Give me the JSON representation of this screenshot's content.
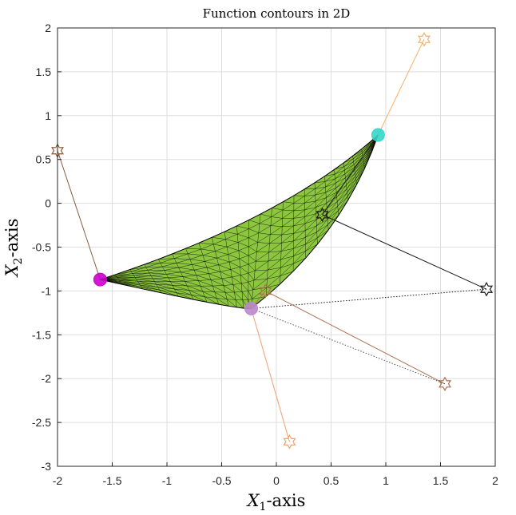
{
  "chart_data": {
    "type": "scatter",
    "title": "Function contours in 2D",
    "xlabel": {
      "var": "X",
      "sub": "1",
      "suffix": "-axis"
    },
    "ylabel": {
      "var": "X",
      "sub": "2",
      "suffix": "-axis"
    },
    "xlim": [
      -2,
      2
    ],
    "ylim": [
      -3,
      2
    ],
    "xticks": [
      -2,
      -1.5,
      -1,
      -0.5,
      0,
      0.5,
      1,
      1.5,
      2
    ],
    "yticks": [
      -3,
      -2.5,
      -2,
      -1.5,
      -1,
      -0.5,
      0,
      0.5,
      1,
      1.5,
      2
    ],
    "xtick_labels": [
      "-2",
      "-1.5",
      "-1",
      "-0.5",
      "0",
      "0.5",
      "1",
      "1.5",
      "2"
    ],
    "ytick_labels": [
      "-3",
      "-2.5",
      "-2",
      "-1.5",
      "-1",
      "-0.5",
      "0",
      "0.5",
      "1",
      "1.5",
      "2"
    ],
    "grid": true,
    "surface": {
      "vertices": [
        [
          -1.61,
          -0.87
        ],
        [
          0.93,
          0.78
        ],
        [
          -0.23,
          -1.2
        ]
      ],
      "fill_color": "#8cc63f",
      "edge_color": "#000000"
    },
    "markers": [
      {
        "x": -1.61,
        "y": -0.87,
        "color": "#cc00cc"
      },
      {
        "x": 0.93,
        "y": 0.78,
        "color": "#33d6c8"
      },
      {
        "x": -0.23,
        "y": -1.2,
        "color": "#bb88cc"
      }
    ],
    "stars": [
      {
        "x": -2.0,
        "y": 0.6,
        "color": "#8b5a3c"
      },
      {
        "x": 1.35,
        "y": 1.87,
        "color": "#f5b06a"
      },
      {
        "x": 1.92,
        "y": -0.98,
        "color": "#1a1a1a"
      },
      {
        "x": 0.42,
        "y": -0.13,
        "color": "#1a1a1a"
      },
      {
        "x": 1.54,
        "y": -2.06,
        "color": "#b07050"
      },
      {
        "x": -0.1,
        "y": -1.0,
        "color": "#b07050"
      },
      {
        "x": 0.12,
        "y": -2.72,
        "color": "#f0a070"
      }
    ],
    "segments": [
      {
        "from": [
          -2.0,
          0.6
        ],
        "to": [
          -1.61,
          -0.87
        ],
        "color": "#8b5a3c",
        "style": "solid"
      },
      {
        "from": [
          1.35,
          1.87
        ],
        "to": [
          0.93,
          0.78
        ],
        "color": "#f5b06a",
        "style": "solid"
      },
      {
        "from": [
          1.92,
          -0.98
        ],
        "to": [
          0.42,
          -0.13
        ],
        "color": "#1a1a1a",
        "style": "solid"
      },
      {
        "from": [
          0.42,
          -0.13
        ],
        "to": [
          0.93,
          0.78
        ],
        "color": "#1a1a1a",
        "style": "solid"
      },
      {
        "from": [
          1.92,
          -0.98
        ],
        "to": [
          -0.23,
          -1.2
        ],
        "color": "#1a1a1a",
        "style": "dotted"
      },
      {
        "from": [
          1.54,
          -2.06
        ],
        "to": [
          -0.1,
          -1.0
        ],
        "color": "#b07050",
        "style": "solid"
      },
      {
        "from": [
          1.54,
          -2.06
        ],
        "to": [
          -0.23,
          -1.2
        ],
        "color": "#555555",
        "style": "dotted"
      },
      {
        "from": [
          -0.1,
          -1.0
        ],
        "to": [
          -0.23,
          -1.2
        ],
        "color": "#b07050",
        "style": "solid"
      },
      {
        "from": [
          0.12,
          -2.72
        ],
        "to": [
          -0.23,
          -1.2
        ],
        "color": "#f0a070",
        "style": "solid"
      }
    ]
  }
}
